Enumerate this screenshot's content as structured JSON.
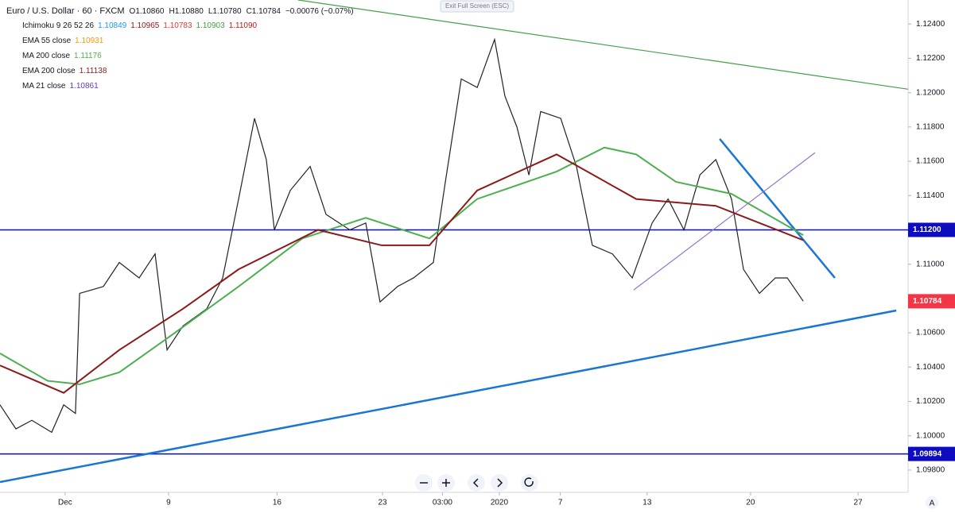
{
  "chart_data": {
    "type": "line",
    "title": "Euro / U.S. Dollar · 60 · FXCM",
    "ohlc": [
      "O1.10860",
      "H1.10880",
      "L1.10780",
      "C1.10784",
      "−0.00076 (−0.07%)"
    ],
    "indicators": [
      {
        "name": "Ichimoku 9 26 52 26",
        "values": [
          "1.10849",
          "1.10965",
          "1.10783",
          "1.10903",
          "1.11090"
        ],
        "colors": [
          "#2196f3",
          "#8b1a1a",
          "#e53935",
          "#43a047",
          "#b71c1c"
        ]
      },
      {
        "name": "EMA 55 close",
        "values": [
          "1.10931"
        ],
        "colors": [
          "#ff9800"
        ]
      },
      {
        "name": "MA 200 close",
        "values": [
          "1.11176"
        ],
        "colors": [
          "#4caf50"
        ]
      },
      {
        "name": "EMA 200 close",
        "values": [
          "1.11138"
        ],
        "colors": [
          "#8b1a1a"
        ]
      },
      {
        "name": "MA 21 close",
        "values": [
          "1.10861"
        ],
        "colors": [
          "#673ab7"
        ]
      }
    ],
    "button": "Exit Full Screen (ESC)",
    "corner_label": "A",
    "series": [
      {
        "name": "Close",
        "color": "#222222",
        "x": [
          0,
          0.77,
          1.54,
          2.5,
          3.08,
          3.65,
          3.85,
          5,
          5.77,
          6.73,
          7.5,
          8.08,
          8.85,
          10,
          10.77,
          11.54,
          12.31,
          12.88,
          13.27,
          14.04,
          15,
          15.77,
          16.92,
          17.69,
          18.38,
          19.23,
          20,
          20.96,
          21.54,
          22.31,
          23.08,
          23.92,
          24.42,
          25,
          25.58,
          26.15,
          27.12,
          27.88,
          28.65,
          29.62,
          30.58,
          31.54,
          32.31,
          33.08,
          33.85,
          34.62,
          35.38,
          35.96,
          36.73,
          37.5,
          38.08,
          38.85
        ],
        "values": [
          1.1018,
          1.1004,
          1.1009,
          1.1002,
          1.1018,
          1.1013,
          1.1083,
          1.1087,
          1.1101,
          1.1092,
          1.1106,
          1.105,
          1.1064,
          1.1074,
          1.1092,
          1.1138,
          1.1185,
          1.1161,
          1.112,
          1.1143,
          1.1157,
          1.1129,
          1.112,
          1.1124,
          1.1078,
          1.1087,
          1.1092,
          1.1101,
          1.1148,
          1.1208,
          1.1203,
          1.1231,
          1.1198,
          1.118,
          1.1152,
          1.1189,
          1.1185,
          1.1157,
          1.1111,
          1.1106,
          1.1092,
          1.1124,
          1.1138,
          1.112,
          1.1152,
          1.1161,
          1.1138,
          1.1097,
          1.1083,
          1.1092,
          1.1092,
          1.10784
        ]
      },
      {
        "name": "MA 200 close",
        "color": "#4caf50",
        "x": [
          0,
          2.31,
          3.85,
          5.77,
          8.46,
          11.54,
          14.62,
          17.69,
          20.77,
          23.08,
          26.92,
          29.23,
          30.77,
          32.69,
          35.38,
          38.85
        ],
        "values": [
          1.1048,
          1.1032,
          1.103,
          1.1037,
          1.106,
          1.1087,
          1.1115,
          1.1127,
          1.1115,
          1.1138,
          1.1154,
          1.1168,
          1.1164,
          1.1148,
          1.1141,
          1.1117
        ]
      },
      {
        "name": "EMA 200 close",
        "color": "#8b1a1a",
        "x": [
          0,
          3.08,
          5.77,
          8.85,
          11.54,
          15.38,
          18.46,
          20.77,
          23.08,
          26.92,
          30.77,
          34.62,
          38.85
        ],
        "values": [
          1.1041,
          1.1025,
          1.105,
          1.1074,
          1.1097,
          1.112,
          1.1111,
          1.1111,
          1.1143,
          1.1164,
          1.1138,
          1.1134,
          1.1114
        ]
      }
    ],
    "xlim": [
      0,
      43.92
    ],
    "xticks": [
      {
        "value": 3.15,
        "label": "Dec"
      },
      {
        "value": 8.15,
        "label": "9"
      },
      {
        "value": 13.4,
        "label": "16"
      },
      {
        "value": 18.5,
        "label": "23"
      },
      {
        "value": 21.4,
        "label": "03:00"
      },
      {
        "value": 24.15,
        "label": "2020"
      },
      {
        "value": 27.1,
        "label": "7"
      },
      {
        "value": 31.3,
        "label": "13"
      },
      {
        "value": 36.3,
        "label": "20"
      },
      {
        "value": 41.5,
        "label": "27"
      }
    ],
    "ylim": [
      1.0967,
      1.1254
    ],
    "yticks": [
      {
        "value": 1.098,
        "label": "1.09800"
      },
      {
        "value": 1.1,
        "label": "1.10000"
      },
      {
        "value": 1.102,
        "label": "1.10200"
      },
      {
        "value": 1.104,
        "label": "1.10400"
      },
      {
        "value": 1.106,
        "label": "1.10600"
      },
      {
        "value": 1.108,
        "label": "1.10800"
      },
      {
        "value": 1.11,
        "label": "1.11000"
      },
      {
        "value": 1.112,
        "label": "1.11200"
      },
      {
        "value": 1.114,
        "label": "1.11400"
      },
      {
        "value": 1.116,
        "label": "1.11600"
      },
      {
        "value": 1.118,
        "label": "1.11800"
      },
      {
        "value": 1.12,
        "label": "1.12000"
      },
      {
        "value": 1.122,
        "label": "1.12200"
      },
      {
        "value": 1.124,
        "label": "1.12400"
      }
    ],
    "levels": [
      {
        "value": 1.112,
        "label": "1.11200",
        "color": "#0d0dbf"
      },
      {
        "value": 1.09894,
        "label": "1.09894",
        "color": "#0d0dbf"
      }
    ],
    "last_price": {
      "value": 1.10784,
      "label": "1.10784",
      "color": "#f23645"
    },
    "trendlines": [
      {
        "color": "#1976d2",
        "points": [
          [
            0,
            1.0973
          ],
          [
            43.35,
            1.1073
          ]
        ]
      },
      {
        "color": "#43a047",
        "points": [
          [
            14.42,
            1.1254
          ],
          [
            43.92,
            1.1202
          ]
        ]
      },
      {
        "color": "#1976d2",
        "points": [
          [
            34.81,
            1.1173
          ],
          [
            40.38,
            1.1092
          ]
        ]
      },
      {
        "color": "#9575cd",
        "points": [
          [
            30.65,
            1.1085
          ],
          [
            39.42,
            1.1165
          ]
        ]
      }
    ]
  }
}
